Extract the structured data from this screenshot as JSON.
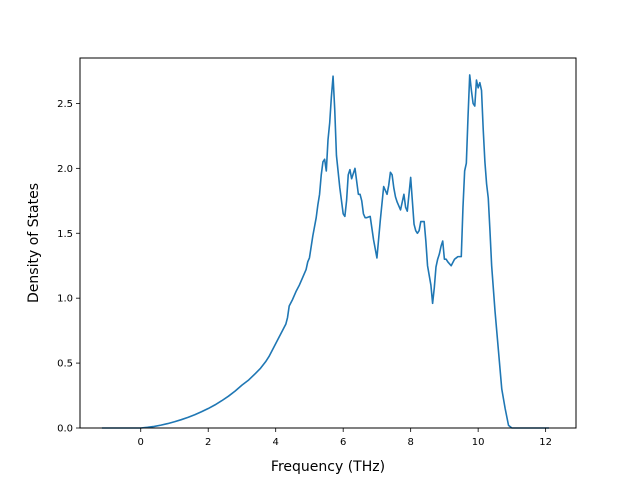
{
  "chart_data": {
    "type": "line",
    "xlabel": "Frequency (THz)",
    "ylabel": "Density of States",
    "xlim": [
      -1.8,
      12.9
    ],
    "ylim": [
      0.0,
      2.85
    ],
    "x_ticks": [
      0,
      2,
      4,
      6,
      8,
      10,
      12
    ],
    "y_ticks": [
      0.0,
      0.5,
      1.0,
      1.5,
      2.0,
      2.5
    ],
    "x_tick_labels": [
      "0",
      "2",
      "4",
      "6",
      "8",
      "10",
      "12"
    ],
    "y_tick_labels": [
      "0.0",
      "0.5",
      "1.0",
      "1.5",
      "2.0",
      "2.5"
    ],
    "grid": false,
    "colors": {
      "line": "#1f77b4",
      "axes": "#000000",
      "background": "#ffffff"
    },
    "series": [
      {
        "x": [
          -1.15,
          -0.8,
          -0.4,
          0.0,
          0.2,
          0.4,
          0.6,
          0.8,
          1.0,
          1.2,
          1.4,
          1.6,
          1.8,
          2.0,
          2.2,
          2.4,
          2.6,
          2.8,
          3.0,
          3.2,
          3.4,
          3.55,
          3.7,
          3.8,
          3.9,
          4.0,
          4.1,
          4.2,
          4.3,
          4.35,
          4.4,
          4.5,
          4.6,
          4.7,
          4.8,
          4.9,
          4.95,
          5.0,
          5.1,
          5.2,
          5.25,
          5.3,
          5.35,
          5.4,
          5.45,
          5.5,
          5.55,
          5.6,
          5.65,
          5.7,
          5.75,
          5.8,
          5.9,
          6.0,
          6.05,
          6.1,
          6.15,
          6.2,
          6.25,
          6.3,
          6.35,
          6.4,
          6.45,
          6.5,
          6.55,
          6.6,
          6.65,
          6.7,
          6.8,
          6.9,
          7.0,
          7.1,
          7.2,
          7.3,
          7.35,
          7.4,
          7.45,
          7.5,
          7.55,
          7.6,
          7.7,
          7.8,
          7.85,
          7.9,
          8.0,
          8.05,
          8.1,
          8.15,
          8.2,
          8.25,
          8.3,
          8.4,
          8.45,
          8.5,
          8.6,
          8.65,
          8.7,
          8.75,
          8.8,
          8.85,
          8.9,
          8.95,
          9.0,
          9.05,
          9.1,
          9.2,
          9.3,
          9.35,
          9.4,
          9.5,
          9.55,
          9.6,
          9.65,
          9.7,
          9.75,
          9.8,
          9.85,
          9.9,
          9.95,
          10.0,
          10.05,
          10.1,
          10.15,
          10.2,
          10.25,
          10.3,
          10.35,
          10.4,
          10.5,
          10.6,
          10.7,
          10.8,
          10.9,
          11.0,
          11.1,
          11.2,
          11.5,
          11.8,
          12.1
        ],
        "y": [
          0.0,
          0.0,
          0.0,
          0.0,
          0.005,
          0.012,
          0.022,
          0.034,
          0.048,
          0.064,
          0.082,
          0.102,
          0.125,
          0.15,
          0.178,
          0.21,
          0.245,
          0.285,
          0.33,
          0.37,
          0.42,
          0.46,
          0.51,
          0.55,
          0.6,
          0.65,
          0.7,
          0.75,
          0.8,
          0.85,
          0.94,
          0.99,
          1.05,
          1.1,
          1.16,
          1.22,
          1.28,
          1.31,
          1.48,
          1.62,
          1.72,
          1.8,
          1.95,
          2.05,
          2.07,
          1.98,
          2.22,
          2.35,
          2.55,
          2.71,
          2.45,
          2.1,
          1.85,
          1.65,
          1.63,
          1.75,
          1.95,
          1.99,
          1.92,
          1.96,
          2.0,
          1.9,
          1.8,
          1.8,
          1.75,
          1.65,
          1.62,
          1.62,
          1.63,
          1.45,
          1.31,
          1.6,
          1.86,
          1.8,
          1.87,
          1.97,
          1.95,
          1.85,
          1.78,
          1.74,
          1.68,
          1.8,
          1.7,
          1.67,
          1.93,
          1.75,
          1.57,
          1.52,
          1.5,
          1.52,
          1.59,
          1.59,
          1.44,
          1.25,
          1.1,
          0.96,
          1.08,
          1.24,
          1.3,
          1.34,
          1.4,
          1.44,
          1.3,
          1.3,
          1.28,
          1.25,
          1.3,
          1.31,
          1.32,
          1.32,
          1.7,
          1.98,
          2.04,
          2.4,
          2.72,
          2.6,
          2.5,
          2.48,
          2.68,
          2.62,
          2.66,
          2.6,
          2.3,
          2.05,
          1.88,
          1.77,
          1.52,
          1.25,
          0.9,
          0.6,
          0.3,
          0.15,
          0.02,
          0.0,
          0.0,
          0.0,
          0.0,
          0.0,
          0.0
        ]
      }
    ]
  }
}
